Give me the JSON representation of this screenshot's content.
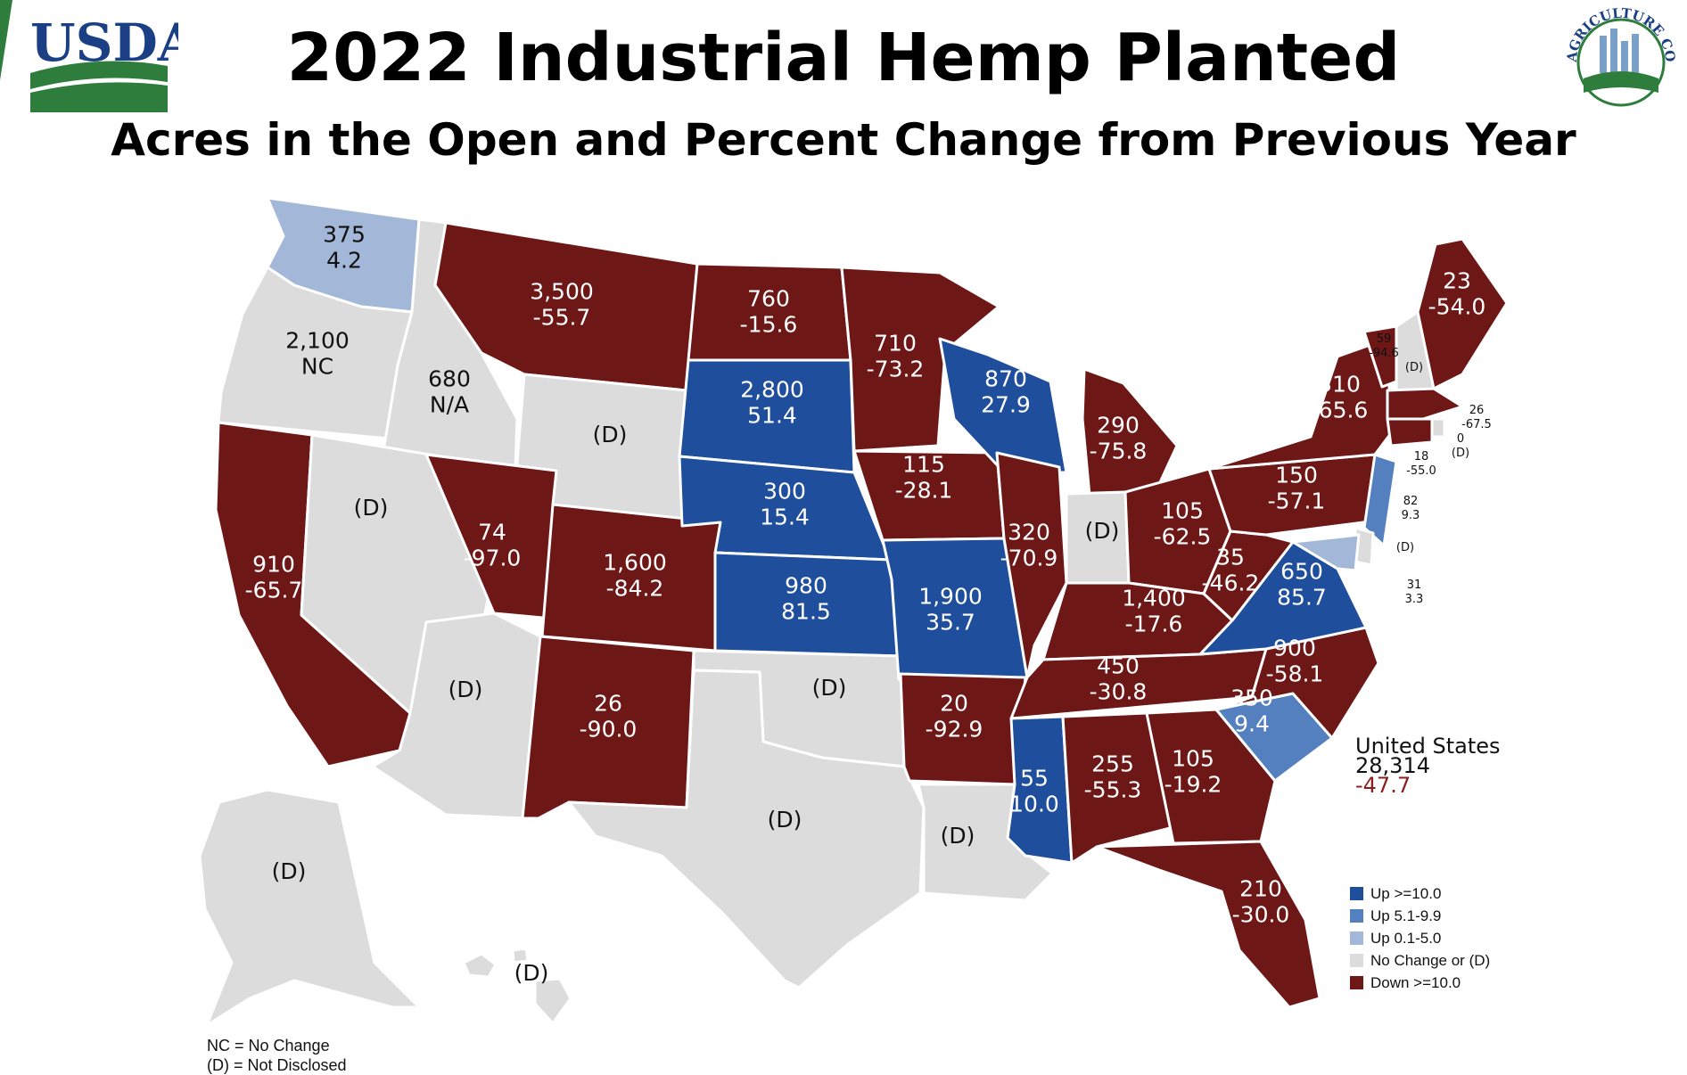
{
  "header": {
    "title": "2022 Industrial Hemp Planted",
    "subtitle": "Acres in the Open and Percent Change from Previous Year",
    "left_logo_text": "USDA",
    "right_logo_text": "AGRICULTURE COUNTS"
  },
  "colors": {
    "up_10": "#1f4e9c",
    "up_5": "#5580bf",
    "up_0": "#a3b8d8",
    "no_change": "#dcdcdc",
    "down_10": "#6e1717",
    "usda_blue": "#1a3f85",
    "usda_green": "#2e7d3c"
  },
  "chart_data": {
    "type": "map",
    "title": "2022 Industrial Hemp Planted",
    "subtitle": "Acres in the Open and Percent Change from Previous Year",
    "states": [
      {
        "state": "WA",
        "acres": "375",
        "change": "4.2",
        "category": "up_0"
      },
      {
        "state": "OR",
        "acres": "2,100",
        "change": "NC",
        "category": "no_change"
      },
      {
        "state": "CA",
        "acres": "910",
        "change": "-65.7",
        "category": "down_10"
      },
      {
        "state": "ID",
        "acres": "680",
        "change": "N/A",
        "category": "no_change"
      },
      {
        "state": "NV",
        "acres": "(D)",
        "change": "",
        "category": "no_change"
      },
      {
        "state": "MT",
        "acres": "3,500",
        "change": "-55.7",
        "category": "down_10"
      },
      {
        "state": "WY",
        "acres": "(D)",
        "change": "",
        "category": "no_change"
      },
      {
        "state": "UT",
        "acres": "74",
        "change": "-97.0",
        "category": "down_10"
      },
      {
        "state": "AZ",
        "acres": "(D)",
        "change": "",
        "category": "no_change"
      },
      {
        "state": "CO",
        "acres": "1,600",
        "change": "-84.2",
        "category": "down_10"
      },
      {
        "state": "NM",
        "acres": "26",
        "change": "-90.0",
        "category": "down_10"
      },
      {
        "state": "ND",
        "acres": "760",
        "change": "-15.6",
        "category": "down_10"
      },
      {
        "state": "SD",
        "acres": "2,800",
        "change": "51.4",
        "category": "up_10"
      },
      {
        "state": "NE",
        "acres": "300",
        "change": "15.4",
        "category": "up_10"
      },
      {
        "state": "KS",
        "acres": "980",
        "change": "81.5",
        "category": "up_10"
      },
      {
        "state": "OK",
        "acres": "(D)",
        "change": "",
        "category": "no_change"
      },
      {
        "state": "TX",
        "acres": "(D)",
        "change": "",
        "category": "no_change"
      },
      {
        "state": "MN",
        "acres": "710",
        "change": "-73.2",
        "category": "down_10"
      },
      {
        "state": "IA",
        "acres": "115",
        "change": "-28.1",
        "category": "down_10"
      },
      {
        "state": "MO",
        "acres": "1,900",
        "change": "35.7",
        "category": "up_10"
      },
      {
        "state": "AR",
        "acres": "20",
        "change": "-92.9",
        "category": "down_10"
      },
      {
        "state": "LA",
        "acres": "(D)",
        "change": "",
        "category": "no_change"
      },
      {
        "state": "WI",
        "acres": "870",
        "change": "27.9",
        "category": "up_10"
      },
      {
        "state": "IL",
        "acres": "320",
        "change": "-70.9",
        "category": "down_10"
      },
      {
        "state": "MI",
        "acres": "290",
        "change": "-75.8",
        "category": "down_10"
      },
      {
        "state": "IN",
        "acres": "(D)",
        "change": "",
        "category": "no_change"
      },
      {
        "state": "OH",
        "acres": "105",
        "change": "-62.5",
        "category": "down_10"
      },
      {
        "state": "KY",
        "acres": "1,400",
        "change": "-17.6",
        "category": "down_10"
      },
      {
        "state": "TN",
        "acres": "450",
        "change": "-30.8",
        "category": "down_10"
      },
      {
        "state": "MS",
        "acres": "55",
        "change": "10.0",
        "category": "up_10"
      },
      {
        "state": "AL",
        "acres": "255",
        "change": "-55.3",
        "category": "down_10"
      },
      {
        "state": "GA",
        "acres": "105",
        "change": "-19.2",
        "category": "down_10"
      },
      {
        "state": "FL",
        "acres": "210",
        "change": "-30.0",
        "category": "down_10"
      },
      {
        "state": "SC",
        "acres": "350",
        "change": "9.4",
        "category": "up_5"
      },
      {
        "state": "NC",
        "acres": "900",
        "change": "-58.1",
        "category": "down_10"
      },
      {
        "state": "VA",
        "acres": "650",
        "change": "85.7",
        "category": "up_10"
      },
      {
        "state": "WV",
        "acres": "35",
        "change": "-46.2",
        "category": "down_10"
      },
      {
        "state": "PA",
        "acres": "150",
        "change": "-57.1",
        "category": "down_10"
      },
      {
        "state": "NY",
        "acres": "310",
        "change": "-65.6",
        "category": "down_10"
      },
      {
        "state": "VT",
        "acres": "59",
        "change": "-94.6",
        "category": "down_10"
      },
      {
        "state": "NH",
        "acres": "(D)",
        "change": "",
        "category": "no_change"
      },
      {
        "state": "ME",
        "acres": "23",
        "change": "-54.0",
        "category": "down_10"
      },
      {
        "state": "MA",
        "acres": "26",
        "change": "-67.5",
        "category": "down_10"
      },
      {
        "state": "RI",
        "acres": "0",
        "change": "(D)",
        "category": "no_change"
      },
      {
        "state": "CT",
        "acres": "18",
        "change": "-55.0",
        "category": "down_10"
      },
      {
        "state": "NJ",
        "acres": "82",
        "change": "9.3",
        "category": "up_5"
      },
      {
        "state": "DE",
        "acres": "(D)",
        "change": "",
        "category": "no_change"
      },
      {
        "state": "MD",
        "acres": "31",
        "change": "3.3",
        "category": "up_0"
      },
      {
        "state": "AK",
        "acres": "(D)",
        "change": "",
        "category": "no_change"
      },
      {
        "state": "HI",
        "acres": "(D)",
        "change": "",
        "category": "no_change"
      }
    ],
    "united_states": {
      "label": "United States",
      "acres": "28,314",
      "change": "-47.7"
    },
    "legend": [
      {
        "label": "Up >=10.0",
        "category": "up_10"
      },
      {
        "label": "Up 5.1-9.9",
        "category": "up_5"
      },
      {
        "label": "Up 0.1-5.0",
        "category": "up_0"
      },
      {
        "label": "No Change or (D)",
        "category": "no_change"
      },
      {
        "label": "Down >=10.0",
        "category": "down_10"
      }
    ]
  },
  "footnote": {
    "nc": "NC = No Change",
    "d": "(D) = Not Disclosed"
  }
}
